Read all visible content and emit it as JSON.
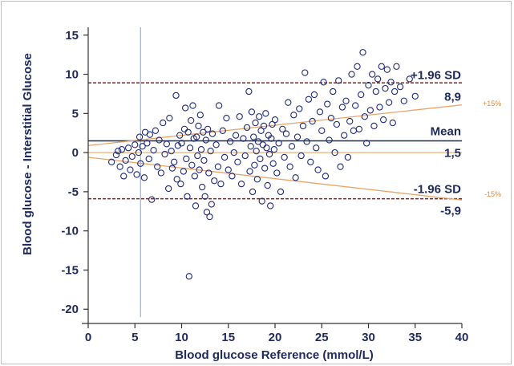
{
  "chart_data": {
    "type": "scatter",
    "title": "",
    "xlabel": "Blood glucose Reference (mmol/L)",
    "ylabel": "Blood glucose - Interstitial Glucose",
    "xlim": [
      0,
      40
    ],
    "ylim": [
      -21,
      16
    ],
    "xticks": [
      "0",
      "5",
      "10",
      "15",
      "20",
      "25",
      "30",
      "35",
      "40"
    ],
    "yticks": [
      "15",
      "10",
      "5",
      "0",
      "-5",
      "-10",
      "-15",
      "-20"
    ],
    "grid": false,
    "reference_lines": {
      "mean": {
        "label": "Mean",
        "value_label": "1,5",
        "value": 1.5
      },
      "upper_loa": {
        "label": "+1.96 SD",
        "value_label": "8,9",
        "value": 8.9
      },
      "lower_loa": {
        "label": "-1.96 SD",
        "value_label": "-5,9",
        "value": -5.9
      },
      "zero": {
        "value": 0
      },
      "vertical_x": 5.6
    },
    "percentage_lines": {
      "upper": {
        "label": "+15%",
        "slope": 0.15,
        "intercept": 0
      },
      "lower": {
        "label": "-15%",
        "slope": -0.15,
        "intercept": 0
      }
    },
    "colors": {
      "points": "#1f2a7a",
      "mean_line": "#1f2a5c",
      "loa_line": "#8b1a1a",
      "percent_line": "#e8a56a",
      "vertical_line": "#7aa7d8",
      "text": "#1f2a5c"
    },
    "points": [
      [
        2.5,
        -1.2
      ],
      [
        3.0,
        -0.3
      ],
      [
        3.2,
        0.2
      ],
      [
        3.4,
        -1.8
      ],
      [
        3.6,
        0.4
      ],
      [
        3.8,
        -3.0
      ],
      [
        4.0,
        -1.0
      ],
      [
        4.3,
        0.6
      ],
      [
        4.5,
        -2.2
      ],
      [
        4.7,
        -0.5
      ],
      [
        5.0,
        1.0
      ],
      [
        5.2,
        -2.8
      ],
      [
        5.4,
        0.0
      ],
      [
        5.5,
        2.0
      ],
      [
        5.6,
        -1.4
      ],
      [
        5.8,
        0.8
      ],
      [
        6.0,
        -3.2
      ],
      [
        6.1,
        2.6
      ],
      [
        6.3,
        1.2
      ],
      [
        6.5,
        -0.8
      ],
      [
        6.6,
        2.3
      ],
      [
        6.8,
        -6.0
      ],
      [
        7.0,
        0.3
      ],
      [
        7.2,
        2.8
      ],
      [
        7.4,
        -1.8
      ],
      [
        7.6,
        1.6
      ],
      [
        7.8,
        -2.6
      ],
      [
        8.0,
        3.8
      ],
      [
        8.2,
        -0.2
      ],
      [
        8.4,
        1.1
      ],
      [
        8.6,
        -4.6
      ],
      [
        8.7,
        4.4
      ],
      [
        8.9,
        0.2
      ],
      [
        9.0,
        -2.0
      ],
      [
        9.2,
        -1.2
      ],
      [
        9.4,
        7.3
      ],
      [
        9.5,
        -3.4
      ],
      [
        9.6,
        0.9
      ],
      [
        9.8,
        2.2
      ],
      [
        9.9,
        -4.0
      ],
      [
        10.0,
        1.2
      ],
      [
        10.2,
        -2.4
      ],
      [
        10.3,
        3.0
      ],
      [
        10.4,
        5.7
      ],
      [
        10.5,
        -0.8
      ],
      [
        10.6,
        -5.6
      ],
      [
        10.7,
        2.6
      ],
      [
        10.8,
        -15.8
      ],
      [
        10.9,
        0.6
      ],
      [
        11.0,
        4.1
      ],
      [
        11.1,
        -1.6
      ],
      [
        11.2,
        6.0
      ],
      [
        11.3,
        1.8
      ],
      [
        11.4,
        -3.0
      ],
      [
        11.5,
        -6.8
      ],
      [
        11.6,
        2.0
      ],
      [
        11.7,
        -0.4
      ],
      [
        11.8,
        3.4
      ],
      [
        11.9,
        -2.2
      ],
      [
        12.0,
        4.8
      ],
      [
        12.1,
        0.4
      ],
      [
        12.2,
        -4.4
      ],
      [
        12.3,
        2.6
      ],
      [
        12.4,
        -1.0
      ],
      [
        12.5,
        -5.6
      ],
      [
        12.6,
        1.6
      ],
      [
        12.7,
        -7.6
      ],
      [
        12.8,
        3.0
      ],
      [
        12.9,
        -2.6
      ],
      [
        13.0,
        -8.2
      ],
      [
        13.1,
        0.2
      ],
      [
        13.2,
        -6.6
      ],
      [
        13.3,
        2.4
      ],
      [
        13.5,
        -3.6
      ],
      [
        13.7,
        1.0
      ],
      [
        13.9,
        -1.8
      ],
      [
        14.0,
        6.0
      ],
      [
        14.2,
        -4.0
      ],
      [
        14.4,
        2.8
      ],
      [
        14.6,
        -0.6
      ],
      [
        14.8,
        4.4
      ],
      [
        15.0,
        -2.2
      ],
      [
        15.2,
        1.4
      ],
      [
        15.4,
        -3.0
      ],
      [
        15.6,
        0.0
      ],
      [
        15.8,
        2.2
      ],
      [
        16.0,
        -1.2
      ],
      [
        16.2,
        4.6
      ],
      [
        16.4,
        -4.0
      ],
      [
        16.6,
        1.8
      ],
      [
        16.8,
        -0.4
      ],
      [
        17.0,
        3.2
      ],
      [
        17.2,
        7.8
      ],
      [
        17.3,
        -2.4
      ],
      [
        17.4,
        0.8
      ],
      [
        17.5,
        5.2
      ],
      [
        17.6,
        -5.0
      ],
      [
        17.7,
        2.0
      ],
      [
        17.8,
        -1.6
      ],
      [
        17.9,
        3.8
      ],
      [
        18.0,
        0.2
      ],
      [
        18.1,
        -3.4
      ],
      [
        18.2,
        1.4
      ],
      [
        18.3,
        4.6
      ],
      [
        18.4,
        -0.8
      ],
      [
        18.5,
        2.8
      ],
      [
        18.6,
        -6.2
      ],
      [
        18.7,
        1.0
      ],
      [
        18.8,
        3.4
      ],
      [
        18.9,
        -2.0
      ],
      [
        19.0,
        5.0
      ],
      [
        19.1,
        0.6
      ],
      [
        19.2,
        -4.2
      ],
      [
        19.3,
        2.2
      ],
      [
        19.4,
        -0.2
      ],
      [
        19.5,
        -6.8
      ],
      [
        19.6,
        1.8
      ],
      [
        19.7,
        3.6
      ],
      [
        19.8,
        -1.4
      ],
      [
        19.9,
        0.4
      ],
      [
        20.0,
        4.2
      ],
      [
        20.2,
        -2.6
      ],
      [
        20.4,
        1.2
      ],
      [
        20.6,
        -5.0
      ],
      [
        20.8,
        3.0
      ],
      [
        21.0,
        -0.6
      ],
      [
        21.2,
        2.4
      ],
      [
        21.4,
        6.4
      ],
      [
        21.6,
        -1.8
      ],
      [
        21.8,
        0.8
      ],
      [
        22.0,
        4.8
      ],
      [
        22.2,
        -3.2
      ],
      [
        22.4,
        2.0
      ],
      [
        22.6,
        5.6
      ],
      [
        22.8,
        -0.4
      ],
      [
        23.0,
        3.4
      ],
      [
        23.2,
        10.2
      ],
      [
        23.4,
        1.4
      ],
      [
        23.6,
        6.8
      ],
      [
        23.8,
        -1.2
      ],
      [
        24.0,
        4.0
      ],
      [
        24.2,
        7.4
      ],
      [
        24.4,
        0.6
      ],
      [
        24.6,
        -2.2
      ],
      [
        24.8,
        5.2
      ],
      [
        25.0,
        2.8
      ],
      [
        25.2,
        9.0
      ],
      [
        25.4,
        -3.0
      ],
      [
        25.6,
        6.2
      ],
      [
        25.8,
        1.6
      ],
      [
        26.0,
        4.4
      ],
      [
        26.2,
        7.8
      ],
      [
        26.4,
        0.0
      ],
      [
        26.6,
        3.6
      ],
      [
        26.8,
        9.2
      ],
      [
        27.0,
        -1.8
      ],
      [
        27.2,
        5.8
      ],
      [
        27.4,
        2.2
      ],
      [
        27.6,
        6.6
      ],
      [
        27.8,
        -0.6
      ],
      [
        28.0,
        4.0
      ],
      [
        28.2,
        10.0
      ],
      [
        28.4,
        2.8
      ],
      [
        28.6,
        6.0
      ],
      [
        28.8,
        11.0
      ],
      [
        29.0,
        3.0
      ],
      [
        29.2,
        7.4
      ],
      [
        29.4,
        12.8
      ],
      [
        29.6,
        4.6
      ],
      [
        29.8,
        1.2
      ],
      [
        30.0,
        8.6
      ],
      [
        30.2,
        5.4
      ],
      [
        30.4,
        10.0
      ],
      [
        30.6,
        3.4
      ],
      [
        30.8,
        7.8
      ],
      [
        31.0,
        9.4
      ],
      [
        31.2,
        5.8
      ],
      [
        31.4,
        11.0
      ],
      [
        31.6,
        4.2
      ],
      [
        31.8,
        8.2
      ],
      [
        32.0,
        10.6
      ],
      [
        32.2,
        6.4
      ],
      [
        32.4,
        9.0
      ],
      [
        32.6,
        3.8
      ],
      [
        32.8,
        7.8
      ],
      [
        33.0,
        11.0
      ],
      [
        33.4,
        8.4
      ],
      [
        33.8,
        6.6
      ],
      [
        34.4,
        9.4
      ],
      [
        35.0,
        7.2
      ]
    ]
  }
}
